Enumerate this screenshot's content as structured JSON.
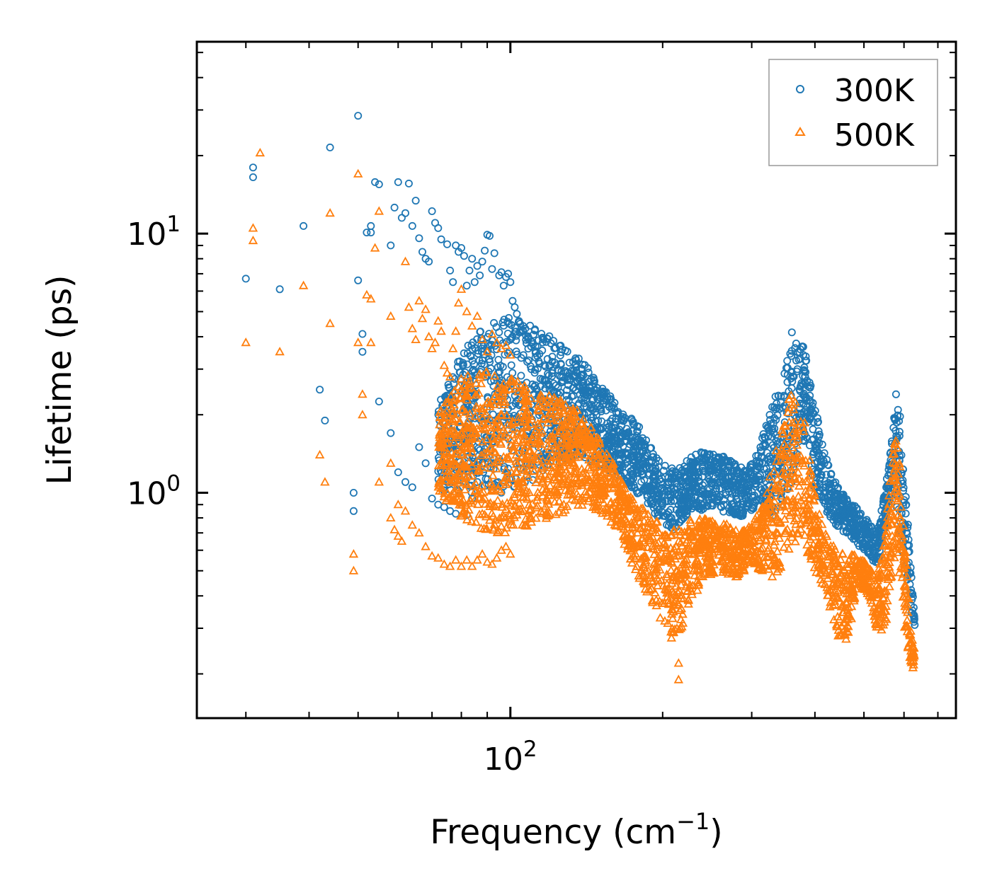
{
  "chart_data": {
    "type": "scatter",
    "title": "",
    "xlabel": "Frequency (cm",
    "xlabel_sup": "−1",
    "xlabel_close": ")",
    "ylabel": "Lifetime (ps)",
    "xscale": "log",
    "yscale": "log",
    "xlim": [
      24,
      760
    ],
    "ylim": [
      0.135,
      55
    ],
    "x_major_ticks": [
      {
        "value": 100,
        "base": "10",
        "exp": "2"
      }
    ],
    "y_major_ticks": [
      {
        "value": 1,
        "base": "10",
        "exp": "0"
      },
      {
        "value": 10,
        "base": "10",
        "exp": "1"
      }
    ],
    "legend": {
      "position": "top-right"
    },
    "series": [
      {
        "name": "300K",
        "marker": "circle",
        "color": "#1f77b4",
        "x": [
          30,
          31,
          31,
          35,
          39,
          42,
          43,
          44,
          49,
          49,
          50,
          50,
          51,
          51,
          52,
          53,
          53,
          54,
          55,
          58,
          59,
          60,
          61,
          62,
          63,
          64,
          65,
          66,
          67,
          68,
          69,
          70,
          71,
          72,
          73,
          75,
          76,
          77,
          78,
          79,
          80,
          81,
          82,
          83,
          84,
          85,
          86,
          87,
          88,
          89,
          90,
          91,
          92,
          93,
          95,
          96,
          97,
          98,
          99,
          100,
          101,
          102,
          103,
          104,
          105,
          106,
          107,
          108,
          110,
          112,
          114,
          116,
          118,
          120,
          55,
          58,
          60,
          62,
          64,
          66,
          68,
          70,
          72,
          74,
          76,
          78,
          80,
          82,
          84,
          86,
          88,
          90
        ],
        "y": [
          6.7,
          18,
          16.5,
          6.1,
          10.7,
          2.5,
          1.9,
          21.5,
          1.0,
          0.85,
          28.5,
          6.6,
          3.5,
          4.1,
          10.1,
          10.1,
          10.7,
          15.8,
          15.5,
          9.0,
          12.6,
          15.8,
          11.5,
          12.0,
          15.6,
          10.7,
          13.4,
          9.6,
          8.5,
          8.0,
          7.8,
          12.2,
          11.0,
          10.5,
          9.5,
          9.1,
          7.2,
          6.5,
          9.0,
          8.5,
          8.8,
          8.2,
          6.3,
          7.2,
          8.0,
          6.5,
          7.5,
          6.9,
          7.8,
          8.6,
          9.9,
          9.8,
          7.3,
          8.4,
          6.9,
          7.1,
          6.3,
          6.8,
          7.0,
          6.5,
          5.5,
          5.2,
          4.9,
          4.6,
          4.2,
          4.4,
          4.3,
          3.2,
          3.0,
          2.6,
          2.4,
          2.3,
          2.0,
          1.9,
          2.25,
          1.7,
          1.2,
          1.1,
          1.05,
          1.5,
          1.3,
          0.95,
          0.9,
          0.88,
          0.85,
          0.83,
          0.9,
          0.82,
          0.95,
          1.1,
          1.3,
          1.5
        ],
        "band": {
          "x": [
            72,
            80,
            90,
            100,
            110,
            120,
            130,
            140,
            150,
            160,
            170,
            180,
            190,
            200,
            210,
            220,
            230,
            240,
            250,
            260,
            270,
            280,
            290,
            300,
            310,
            320,
            330,
            340,
            350,
            360,
            370,
            380,
            390,
            400,
            410,
            420,
            430,
            440,
            450,
            460,
            470,
            480,
            490,
            500,
            510,
            520,
            530,
            540,
            550,
            560,
            570,
            580,
            590,
            600,
            610,
            620,
            630
          ],
          "low": [
            1.0,
            1.0,
            1.0,
            1.0,
            1.1,
            1.3,
            1.3,
            1.35,
            1.25,
            1.2,
            1.1,
            0.95,
            0.85,
            0.75,
            0.72,
            0.78,
            0.85,
            0.85,
            0.88,
            0.85,
            0.82,
            0.8,
            0.82,
            0.85,
            0.9,
            0.85,
            0.8,
            0.85,
            0.95,
            1.1,
            1.4,
            1.6,
            1.3,
            1.0,
            0.9,
            0.85,
            0.8,
            0.75,
            0.72,
            0.7,
            0.68,
            0.65,
            0.62,
            0.6,
            0.58,
            0.55,
            0.52,
            0.6,
            0.75,
            0.9,
            1.0,
            0.8,
            0.6,
            0.5,
            0.4,
            0.34,
            0.3
          ],
          "high": [
            2.2,
            3.5,
            4.5,
            4.8,
            4.5,
            4.0,
            3.6,
            3.2,
            2.6,
            2.3,
            2.1,
            1.8,
            1.5,
            1.3,
            1.25,
            1.3,
            1.4,
            1.45,
            1.45,
            1.4,
            1.35,
            1.3,
            1.25,
            1.3,
            1.5,
            1.8,
            2.2,
            2.6,
            3.2,
            4.6,
            3.5,
            3.8,
            2.8,
            2.2,
            1.7,
            1.4,
            1.2,
            1.1,
            1.0,
            0.98,
            0.95,
            0.9,
            0.85,
            0.8,
            0.78,
            0.75,
            0.72,
            0.85,
            1.0,
            1.3,
            1.8,
            2.7,
            2.0,
            1.2,
            0.8,
            0.5,
            0.32
          ]
        }
      },
      {
        "name": "500K",
        "marker": "triangle",
        "color": "#ff7f0e",
        "x": [
          30,
          31,
          31,
          32,
          35,
          39,
          42,
          43,
          44,
          44,
          49,
          49,
          50,
          50,
          51,
          51,
          52,
          53,
          53,
          54,
          55,
          58,
          58,
          59,
          60,
          61,
          62,
          63,
          64,
          65,
          66,
          67,
          68,
          69,
          70,
          71,
          72,
          73,
          74,
          75,
          76,
          77,
          78,
          79,
          80,
          82,
          84,
          86,
          88,
          90,
          92,
          94,
          96,
          98,
          100,
          55,
          58,
          60,
          62,
          64,
          66,
          68,
          70,
          72,
          74,
          76,
          78,
          80,
          82,
          84,
          86,
          88,
          90,
          92,
          94,
          96,
          98,
          100,
          215,
          215
        ],
        "y": [
          3.8,
          10.5,
          9.4,
          20.5,
          3.5,
          6.3,
          1.4,
          1.1,
          12.0,
          4.5,
          0.58,
          0.5,
          17.0,
          3.8,
          2.4,
          2.0,
          5.8,
          5.6,
          3.8,
          8.8,
          12.2,
          4.8,
          0.8,
          0.72,
          0.68,
          0.65,
          7.8,
          5.2,
          4.3,
          3.9,
          5.5,
          4.7,
          5.1,
          4.0,
          3.6,
          3.8,
          4.6,
          4.2,
          3.1,
          2.9,
          2.8,
          3.6,
          4.2,
          5.4,
          6.1,
          5.0,
          4.4,
          4.8,
          3.9,
          3.5,
          4.1,
          3.8,
          3.6,
          3.7,
          3.4,
          1.1,
          1.3,
          0.9,
          0.85,
          0.75,
          0.7,
          0.62,
          0.57,
          0.56,
          0.53,
          0.52,
          0.55,
          0.52,
          0.55,
          0.52,
          0.55,
          0.58,
          0.54,
          0.53,
          0.56,
          0.6,
          0.62,
          0.58,
          0.22,
          0.19
        ],
        "band": {
          "x": [
            72,
            80,
            90,
            100,
            110,
            120,
            130,
            140,
            150,
            160,
            170,
            180,
            190,
            200,
            210,
            220,
            230,
            240,
            250,
            260,
            270,
            280,
            290,
            300,
            310,
            320,
            330,
            340,
            350,
            360,
            370,
            380,
            390,
            400,
            410,
            420,
            430,
            440,
            450,
            460,
            470,
            480,
            490,
            500,
            510,
            520,
            530,
            540,
            550,
            560,
            570,
            580,
            590,
            600,
            610,
            620,
            630
          ],
          "low": [
            1.0,
            0.8,
            0.7,
            0.7,
            0.75,
            0.8,
            0.85,
            0.9,
            0.85,
            0.75,
            0.6,
            0.45,
            0.38,
            0.3,
            0.27,
            0.3,
            0.38,
            0.45,
            0.48,
            0.5,
            0.48,
            0.47,
            0.5,
            0.52,
            0.5,
            0.48,
            0.47,
            0.5,
            0.55,
            0.6,
            0.65,
            0.62,
            0.55,
            0.5,
            0.45,
            0.4,
            0.35,
            0.3,
            0.26,
            0.25,
            0.3,
            0.4,
            0.45,
            0.42,
            0.4,
            0.35,
            0.3,
            0.28,
            0.3,
            0.35,
            0.5,
            0.6,
            0.45,
            0.3,
            0.25,
            0.22,
            0.2
          ],
          "high": [
            2.0,
            2.8,
            3.0,
            2.8,
            2.5,
            2.4,
            2.2,
            2.0,
            1.6,
            1.3,
            1.0,
            0.9,
            0.8,
            0.75,
            0.72,
            0.75,
            0.8,
            0.8,
            0.8,
            0.78,
            0.75,
            0.72,
            0.72,
            0.75,
            0.85,
            1.0,
            1.3,
            1.6,
            2.0,
            2.6,
            2.0,
            2.0,
            1.4,
            1.0,
            0.8,
            0.7,
            0.65,
            0.6,
            0.6,
            0.6,
            0.58,
            0.58,
            0.55,
            0.55,
            0.52,
            0.5,
            0.48,
            0.55,
            0.7,
            1.0,
            1.4,
            1.8,
            1.2,
            0.7,
            0.45,
            0.3,
            0.25
          ]
        }
      }
    ]
  }
}
